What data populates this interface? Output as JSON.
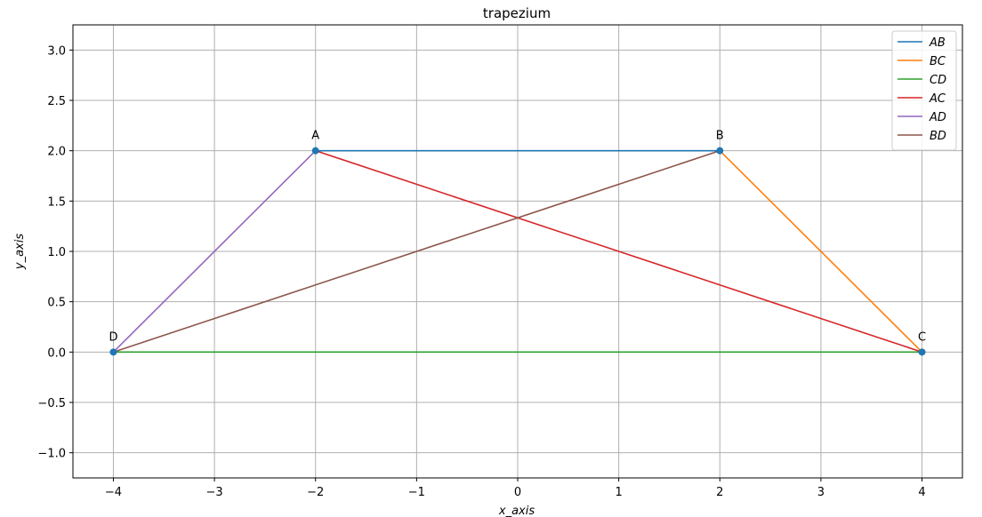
{
  "chart_data": {
    "type": "line",
    "title": "trapezium",
    "xlabel": "x_axis",
    "ylabel": "y_axis",
    "xlim": [
      -4.4,
      4.4
    ],
    "ylim": [
      -1.25,
      3.25
    ],
    "xticks": [
      -4,
      -3,
      -2,
      -1,
      0,
      1,
      2,
      3,
      4
    ],
    "xtick_labels": [
      "−4",
      "−3",
      "−2",
      "−1",
      "0",
      "1",
      "2",
      "3",
      "4"
    ],
    "yticks": [
      -1.0,
      -0.5,
      0.0,
      0.5,
      1.0,
      1.5,
      2.0,
      2.5,
      3.0
    ],
    "ytick_labels": [
      "−1.0",
      "−0.5",
      "0.0",
      "0.5",
      "1.0",
      "1.5",
      "2.0",
      "2.5",
      "3.0"
    ],
    "grid": true,
    "legend_position": "top-right",
    "points": [
      {
        "label": "A",
        "x": -2,
        "y": 2
      },
      {
        "label": "B",
        "x": 2,
        "y": 2
      },
      {
        "label": "C",
        "x": 4,
        "y": 0
      },
      {
        "label": "D",
        "x": -4,
        "y": 0
      }
    ],
    "series": [
      {
        "name": "AB",
        "x": [
          -2,
          2
        ],
        "y": [
          2,
          2
        ],
        "color": "#1f77b4"
      },
      {
        "name": "BC",
        "x": [
          2,
          4
        ],
        "y": [
          2,
          0
        ],
        "color": "#ff7f0e"
      },
      {
        "name": "CD",
        "x": [
          4,
          -4
        ],
        "y": [
          0,
          0
        ],
        "color": "#2ca02c"
      },
      {
        "name": "AC",
        "x": [
          -2,
          4
        ],
        "y": [
          2,
          0
        ],
        "color": "#d62728"
      },
      {
        "name": "AD",
        "x": [
          -2,
          -4
        ],
        "y": [
          2,
          0
        ],
        "color": "#9467bd"
      },
      {
        "name": "BD",
        "x": [
          2,
          -4
        ],
        "y": [
          2,
          0
        ],
        "color": "#8c564b"
      }
    ],
    "point_color": "#1f77b4"
  }
}
